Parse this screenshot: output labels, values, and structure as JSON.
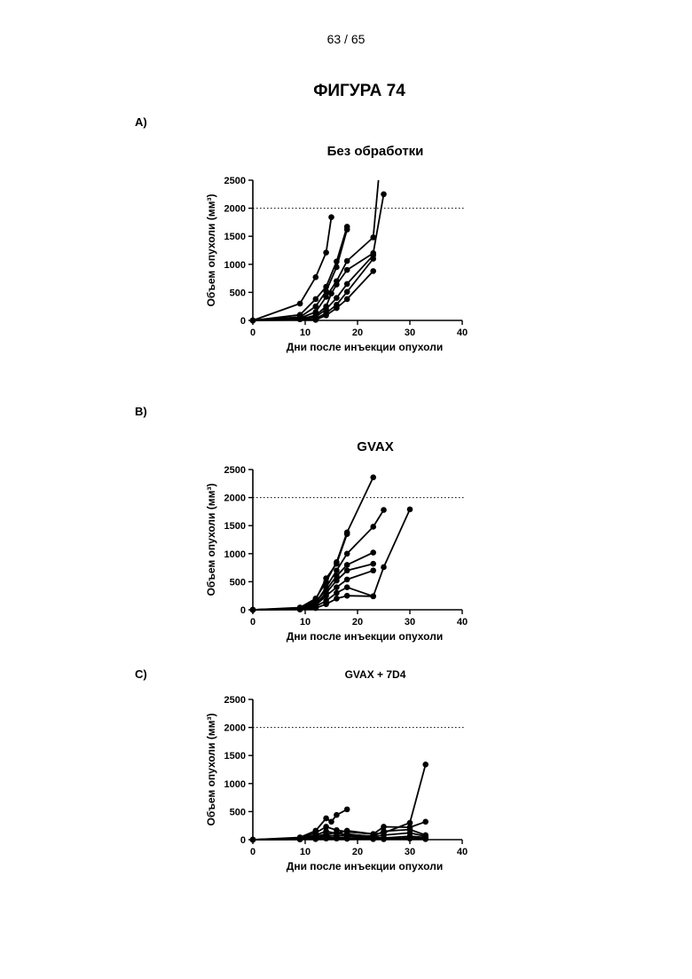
{
  "page": {
    "number": "63 / 65",
    "figure_title": "ФИГУРА 74"
  },
  "panels": [
    {
      "label": "A)"
    },
    {
      "label": "B)"
    },
    {
      "label": "C)"
    }
  ],
  "chart_data": [
    {
      "type": "line",
      "title": "Без обработки",
      "xlabel": "Дни после инъекции опухоли",
      "ylabel": "Объем опухоли (мм³)",
      "xlim": [
        0,
        40
      ],
      "ylim": [
        0,
        2500
      ],
      "xticks": [
        0,
        10,
        20,
        30,
        40
      ],
      "yticks": [
        0,
        500,
        1000,
        1500,
        2000,
        2500
      ],
      "threshold": 2000,
      "series": [
        {
          "x": [
            0,
            9,
            12,
            14,
            15
          ],
          "y": [
            0,
            300,
            770,
            1210,
            1840
          ]
        },
        {
          "x": [
            0,
            9,
            12,
            14,
            16,
            18
          ],
          "y": [
            0,
            100,
            380,
            600,
            1050,
            1670
          ]
        },
        {
          "x": [
            0,
            9,
            12,
            14,
            16,
            18
          ],
          "y": [
            0,
            60,
            250,
            520,
            950,
            1620
          ]
        },
        {
          "x": [
            0,
            9,
            12,
            14,
            16,
            18,
            23,
            24
          ],
          "y": [
            0,
            40,
            150,
            420,
            700,
            1060,
            1480,
            2500
          ]
        },
        {
          "x": [
            0,
            9,
            12,
            14,
            15,
            16,
            18,
            23,
            25
          ],
          "y": [
            0,
            20,
            90,
            250,
            480,
            640,
            900,
            1200,
            2250
          ]
        },
        {
          "x": [
            0,
            12,
            14,
            16,
            18,
            23
          ],
          "y": [
            0,
            60,
            200,
            400,
            650,
            1160
          ]
        },
        {
          "x": [
            0,
            12,
            14,
            16,
            18,
            23
          ],
          "y": [
            0,
            30,
            130,
            280,
            510,
            1100
          ]
        },
        {
          "x": [
            0,
            12,
            14,
            16,
            18,
            23
          ],
          "y": [
            0,
            10,
            90,
            220,
            380,
            880
          ]
        }
      ]
    },
    {
      "type": "line",
      "title": "GVAX",
      "xlabel": "Дни после инъекции опухоли",
      "ylabel": "Объем опухоли (мм³)",
      "xlim": [
        0,
        40
      ],
      "ylim": [
        0,
        2500
      ],
      "xticks": [
        0,
        10,
        20,
        30,
        40
      ],
      "yticks": [
        0,
        500,
        1000,
        1500,
        2000,
        2500
      ],
      "threshold": 2000,
      "series": [
        {
          "x": [
            0,
            9,
            12,
            14,
            16,
            18,
            23
          ],
          "y": [
            0,
            40,
            200,
            500,
            850,
            1380,
            2360
          ]
        },
        {
          "x": [
            0,
            9,
            12,
            14,
            16,
            18
          ],
          "y": [
            0,
            30,
            180,
            560,
            820,
            1350
          ]
        },
        {
          "x": [
            0,
            9,
            12,
            14,
            16,
            18,
            23,
            25
          ],
          "y": [
            0,
            20,
            120,
            400,
            700,
            1000,
            1480,
            1780
          ]
        },
        {
          "x": [
            0,
            9,
            12,
            14,
            16,
            18,
            23
          ],
          "y": [
            0,
            20,
            150,
            350,
            600,
            800,
            1020
          ]
        },
        {
          "x": [
            0,
            9,
            12,
            14,
            16,
            18,
            23
          ],
          "y": [
            0,
            15,
            100,
            300,
            520,
            700,
            820
          ]
        },
        {
          "x": [
            0,
            9,
            12,
            14,
            16,
            18,
            23
          ],
          "y": [
            0,
            10,
            80,
            250,
            400,
            540,
            700
          ]
        },
        {
          "x": [
            0,
            9,
            12,
            14,
            16,
            18,
            23,
            25,
            30
          ],
          "y": [
            0,
            10,
            60,
            160,
            300,
            400,
            240,
            760,
            1790
          ]
        },
        {
          "x": [
            0,
            9,
            12,
            14,
            16,
            18,
            23
          ],
          "y": [
            0,
            5,
            30,
            100,
            200,
            250,
            240
          ]
        }
      ]
    },
    {
      "type": "line",
      "title": "GVAX + 7D4",
      "xlabel": "Дни после инъекции опухоли",
      "ylabel": "Объем опухоли (мм³)",
      "xlim": [
        0,
        40
      ],
      "ylim": [
        0,
        2500
      ],
      "xticks": [
        0,
        10,
        20,
        30,
        40
      ],
      "yticks": [
        0,
        500,
        1000,
        1500,
        2000,
        2500
      ],
      "threshold": 2000,
      "series": [
        {
          "x": [
            0,
            9,
            12,
            14,
            15,
            16,
            18
          ],
          "y": [
            0,
            40,
            160,
            380,
            320,
            440,
            540
          ]
        },
        {
          "x": [
            0,
            9,
            12,
            14,
            16,
            18,
            23,
            25,
            30,
            33
          ],
          "y": [
            0,
            30,
            120,
            230,
            170,
            140,
            100,
            120,
            300,
            1340
          ]
        },
        {
          "x": [
            0,
            9,
            12,
            14,
            16,
            18,
            23,
            25,
            30,
            33
          ],
          "y": [
            0,
            20,
            80,
            150,
            110,
            160,
            100,
            230,
            220,
            320
          ]
        },
        {
          "x": [
            0,
            9,
            12,
            14,
            16,
            18,
            23,
            25,
            30,
            33
          ],
          "y": [
            0,
            15,
            60,
            100,
            120,
            90,
            60,
            150,
            180,
            80
          ]
        },
        {
          "x": [
            0,
            9,
            12,
            14,
            16,
            18,
            23,
            25,
            30,
            33
          ],
          "y": [
            0,
            10,
            40,
            80,
            60,
            100,
            50,
            80,
            120,
            60
          ]
        },
        {
          "x": [
            0,
            9,
            12,
            14,
            16,
            18,
            23,
            25,
            30,
            33
          ],
          "y": [
            0,
            10,
            30,
            50,
            80,
            60,
            40,
            30,
            60,
            40
          ]
        },
        {
          "x": [
            0,
            9,
            12,
            14,
            16,
            18,
            23,
            25,
            30,
            33
          ],
          "y": [
            0,
            5,
            20,
            30,
            40,
            30,
            20,
            10,
            30,
            20
          ]
        },
        {
          "x": [
            0,
            9,
            12,
            14,
            16,
            18,
            23,
            25,
            30,
            33
          ],
          "y": [
            0,
            5,
            10,
            20,
            20,
            15,
            10,
            10,
            20,
            10
          ]
        }
      ]
    }
  ]
}
